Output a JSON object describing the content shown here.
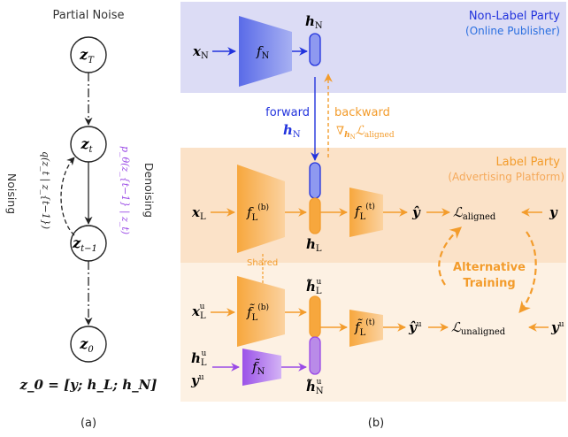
{
  "panel_a": {
    "title": "Partial Noise",
    "nodes": [
      {
        "id": "zT",
        "sym": "z",
        "sub": "T"
      },
      {
        "id": "zt",
        "sym": "z",
        "sub": "t"
      },
      {
        "id": "zt1",
        "sym": "z",
        "sub": "t−1"
      },
      {
        "id": "z0",
        "sym": "z",
        "sub": "0"
      }
    ],
    "noising_label": "Noising",
    "noising_formula": "q(z_t | z_{t−1})",
    "denoising_label": "Denoising",
    "denoising_formula": "p_θ(z_{t−1} | z_t)",
    "equation": "z_0 = [y; h_L; h_N]",
    "caption": "(a)"
  },
  "panel_b": {
    "nonlabel_title": "Non-Label Party",
    "nonlabel_subtitle": "(Online Publisher)",
    "label_title": "Label Party",
    "label_subtitle": "(Advertising Platform)",
    "forward_label": "forward",
    "backward_label": "backward",
    "shared_label": "Shared",
    "alternative_line1": "Alternative",
    "alternative_line2": "Training",
    "caption": "(b)"
  },
  "colors": {
    "blue": "#2233dd",
    "orange": "#f39c2c",
    "purple": "#9a4ae6",
    "top_bg": "#dcdcf5",
    "mid_bg": "#fbe2c8",
    "bot_bg": "#fdf1e3"
  }
}
